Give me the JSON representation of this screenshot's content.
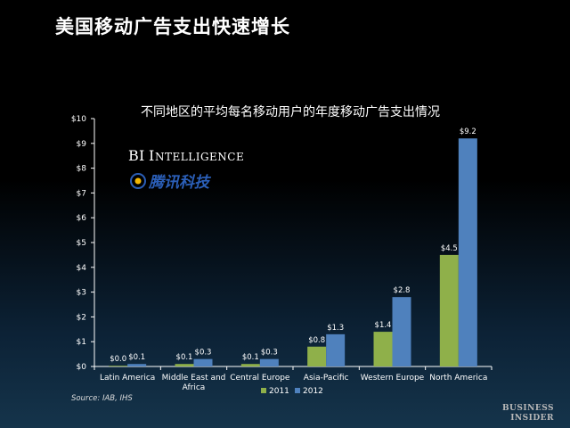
{
  "slide": {
    "title": "美国移动广告支出快速增长",
    "source": "Source: IAB, IHS",
    "watermark_bi": "BI Intelligence",
    "watermark_tencent": "腾讯科技",
    "brand_line1": "Business",
    "brand_line2": "Insider"
  },
  "colors": {
    "series_2011": "#8fb04a",
    "series_2012": "#4f81bd",
    "axis": "#ffffff",
    "tencent_logo": "#2b5fb8"
  },
  "chart_data": {
    "type": "bar",
    "title": "不同地区的平均每名移动用户的年度移动广告支出情况",
    "categories": [
      "Latin America",
      "Middle East and Africa",
      "Central Europe",
      "Asia-Pacific",
      "Western Europe",
      "North America"
    ],
    "category_lines": [
      [
        "Latin America"
      ],
      [
        "Middle East and",
        "Africa"
      ],
      [
        "Central Europe"
      ],
      [
        "Asia-Pacific"
      ],
      [
        "Western Europe"
      ],
      [
        "North America"
      ]
    ],
    "series": [
      {
        "name": "2011",
        "values": [
          0.0,
          0.1,
          0.1,
          0.8,
          1.4,
          4.5
        ],
        "labels": [
          "$0.0",
          "$0.1",
          "$0.1",
          "$0.8",
          "$1.4",
          "$4.5"
        ]
      },
      {
        "name": "2012",
        "values": [
          0.1,
          0.3,
          0.3,
          1.3,
          2.8,
          9.2
        ],
        "labels": [
          "$0.1",
          "$0.3",
          "$0.3",
          "$1.3",
          "$2.8",
          "$9.2"
        ]
      }
    ],
    "ylim": [
      0,
      10
    ],
    "yticks": [
      0,
      1,
      2,
      3,
      4,
      5,
      6,
      7,
      8,
      9,
      10
    ],
    "ytick_labels": [
      "$0",
      "$1",
      "$2",
      "$3",
      "$4",
      "$5",
      "$6",
      "$7",
      "$8",
      "$9",
      "$10"
    ],
    "xlabel": "",
    "ylabel": "",
    "grid": false,
    "legend_position": "bottom"
  }
}
